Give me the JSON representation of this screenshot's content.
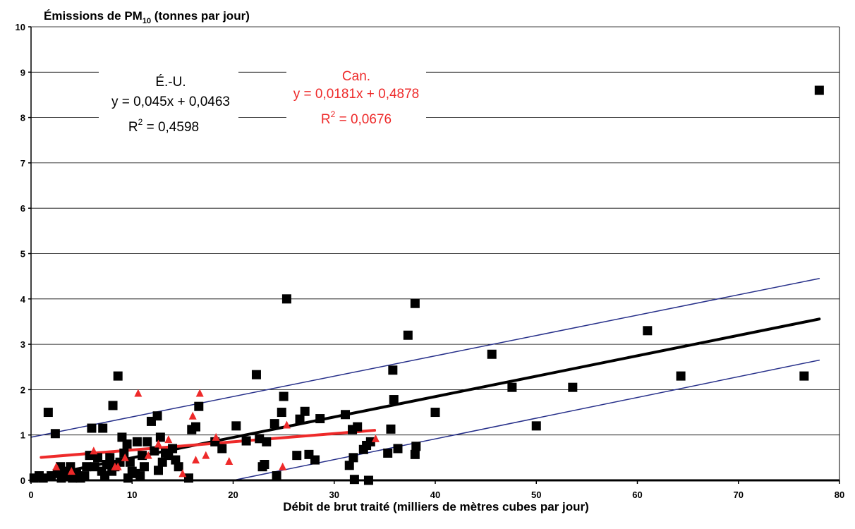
{
  "chart_data": {
    "type": "scatter",
    "title": "Émissions de PM10 (tonnes par jour)",
    "ylabel_main": "Émissions de PM",
    "ylabel_sub": "10",
    "ylabel_rest": " (tonnes par jour)",
    "xlabel": "Débit de brut traité (milliers de mètres cubes par jour)",
    "xlim": [
      0,
      80
    ],
    "ylim": [
      0,
      10
    ],
    "x_ticks": [
      0,
      10,
      20,
      30,
      40,
      50,
      60,
      70,
      80
    ],
    "y_ticks": [
      0,
      1,
      2,
      3,
      4,
      5,
      6,
      7,
      8,
      9,
      10
    ],
    "grid": true,
    "colors": {
      "us": "#000000",
      "can": "#ee2a2a",
      "bands": "#27308a"
    },
    "series": [
      {
        "key": "us",
        "marker": "square",
        "points": [
          [
            0.3,
            0.05
          ],
          [
            0.8,
            0.1
          ],
          [
            1.2,
            0.05
          ],
          [
            1.7,
            1.5
          ],
          [
            2.0,
            0.1
          ],
          [
            2.4,
            1.03
          ],
          [
            2.6,
            0.15
          ],
          [
            2.9,
            0.3
          ],
          [
            3.0,
            0.05
          ],
          [
            3.3,
            0.2
          ],
          [
            3.6,
            0.1
          ],
          [
            3.9,
            0.3
          ],
          [
            4.1,
            0.05
          ],
          [
            4.5,
            0.15
          ],
          [
            4.9,
            0.05
          ],
          [
            5.3,
            0.1
          ],
          [
            5.5,
            0.3
          ],
          [
            5.8,
            0.55
          ],
          [
            6.0,
            1.15
          ],
          [
            6.3,
            0.3
          ],
          [
            6.6,
            0.5
          ],
          [
            7.0,
            0.2
          ],
          [
            7.1,
            1.15
          ],
          [
            7.3,
            0.1
          ],
          [
            7.5,
            0.35
          ],
          [
            7.8,
            0.5
          ],
          [
            8.0,
            0.2
          ],
          [
            8.1,
            1.65
          ],
          [
            8.3,
            0.3
          ],
          [
            8.6,
            2.3
          ],
          [
            8.8,
            0.4
          ],
          [
            9.0,
            0.95
          ],
          [
            9.2,
            0.6
          ],
          [
            9.5,
            0.8
          ],
          [
            9.6,
            0.05
          ],
          [
            9.8,
            0.4
          ],
          [
            10.0,
            0.2
          ],
          [
            10.3,
            0.15
          ],
          [
            10.5,
            0.85
          ],
          [
            10.8,
            0.1
          ],
          [
            11.0,
            0.55
          ],
          [
            11.2,
            0.3
          ],
          [
            11.5,
            0.85
          ],
          [
            11.9,
            1.3
          ],
          [
            12.2,
            0.65
          ],
          [
            12.5,
            1.42
          ],
          [
            12.6,
            0.22
          ],
          [
            12.8,
            0.95
          ],
          [
            13.0,
            0.4
          ],
          [
            13.3,
            0.6
          ],
          [
            13.6,
            0.55
          ],
          [
            14.0,
            0.7
          ],
          [
            14.3,
            0.45
          ],
          [
            14.6,
            0.3
          ],
          [
            15.6,
            0.05
          ],
          [
            15.9,
            1.12
          ],
          [
            16.3,
            1.18
          ],
          [
            16.6,
            1.63
          ],
          [
            18.2,
            0.85
          ],
          [
            18.9,
            0.7
          ],
          [
            20.3,
            1.2
          ],
          [
            21.3,
            0.87
          ],
          [
            22.3,
            2.33
          ],
          [
            22.6,
            0.92
          ],
          [
            22.9,
            0.3
          ],
          [
            23.1,
            0.35
          ],
          [
            23.3,
            0.85
          ],
          [
            24.1,
            1.25
          ],
          [
            24.3,
            0.1
          ],
          [
            24.8,
            1.5
          ],
          [
            25.0,
            1.85
          ],
          [
            25.3,
            4.0
          ],
          [
            26.3,
            0.55
          ],
          [
            26.6,
            1.35
          ],
          [
            27.1,
            1.52
          ],
          [
            27.5,
            0.57
          ],
          [
            28.1,
            0.45
          ],
          [
            28.6,
            1.36
          ],
          [
            31.1,
            1.45
          ],
          [
            31.5,
            0.33
          ],
          [
            31.8,
            1.12
          ],
          [
            31.9,
            0.5
          ],
          [
            32.0,
            0.02
          ],
          [
            32.3,
            1.18
          ],
          [
            32.9,
            0.68
          ],
          [
            33.2,
            0.77
          ],
          [
            33.4,
            0.0
          ],
          [
            33.6,
            0.85
          ],
          [
            35.3,
            0.6
          ],
          [
            35.6,
            1.13
          ],
          [
            35.8,
            2.43
          ],
          [
            35.9,
            1.78
          ],
          [
            36.3,
            0.7
          ],
          [
            37.3,
            3.2
          ],
          [
            38.0,
            3.9
          ],
          [
            38.0,
            0.57
          ],
          [
            38.1,
            0.75
          ],
          [
            40.0,
            1.5
          ],
          [
            45.6,
            2.78
          ],
          [
            47.6,
            2.05
          ],
          [
            50.0,
            1.2
          ],
          [
            53.6,
            2.05
          ],
          [
            61.0,
            3.3
          ],
          [
            64.3,
            2.3
          ],
          [
            76.5,
            2.3
          ],
          [
            78.0,
            8.6
          ]
        ]
      },
      {
        "key": "can",
        "marker": "triangle",
        "points": [
          [
            2.5,
            0.3
          ],
          [
            4.0,
            0.2
          ],
          [
            6.2,
            0.65
          ],
          [
            8.3,
            0.3
          ],
          [
            8.6,
            0.3
          ],
          [
            9.3,
            0.5
          ],
          [
            10.6,
            1.92
          ],
          [
            11.6,
            0.55
          ],
          [
            12.6,
            0.8
          ],
          [
            13.6,
            0.9
          ],
          [
            15.0,
            0.15
          ],
          [
            16.0,
            1.42
          ],
          [
            16.3,
            0.45
          ],
          [
            16.7,
            1.92
          ],
          [
            17.3,
            0.55
          ],
          [
            18.3,
            0.95
          ],
          [
            19.6,
            0.42
          ],
          [
            24.9,
            0.3
          ],
          [
            25.3,
            1.22
          ],
          [
            34.1,
            0.92
          ]
        ]
      }
    ],
    "trendlines": [
      {
        "series": "us",
        "slope": 0.045,
        "intercept": 0.0463,
        "x_range": [
          0,
          78
        ]
      },
      {
        "series": "can",
        "slope": 0.0181,
        "intercept": 0.4878,
        "x_range": [
          1,
          34
        ]
      },
      {
        "series": "band_upper",
        "x_range": [
          0,
          78
        ],
        "y_range": [
          0.95,
          4.45
        ]
      },
      {
        "series": "band_lower",
        "x_range": [
          20,
          78
        ],
        "y_range": [
          0.0,
          2.65
        ]
      }
    ],
    "annotations": {
      "us": {
        "label": "É.-U.",
        "equation": "y = 0,045x + 0,0463",
        "r2_prefix": "R",
        "r2_sup": "2",
        "r2_value": " = 0,4598"
      },
      "can": {
        "label": "Can.",
        "equation": "y = 0,0181x + 0,4878",
        "r2_prefix": "R",
        "r2_sup": "2",
        "r2_value": " = 0,0676"
      }
    }
  }
}
